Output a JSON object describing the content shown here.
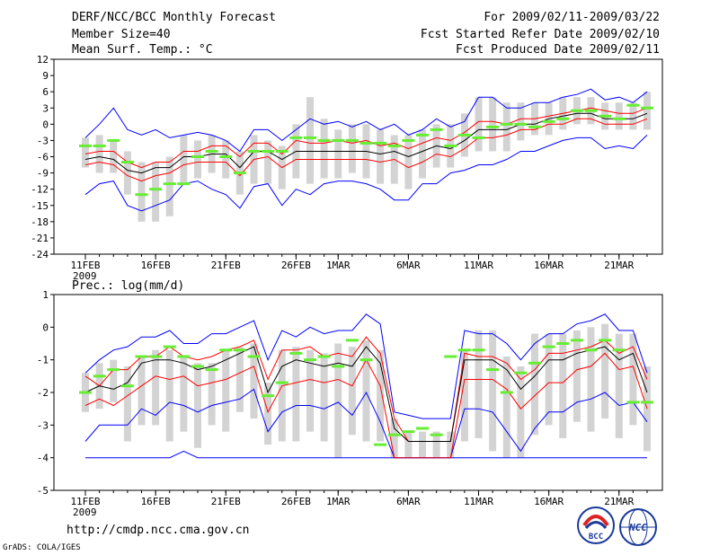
{
  "header": {
    "left": [
      "DERF/NCC/BCC Monthly Forecast",
      "Member Size=40",
      "Mean Surf. Temp.: °C"
    ],
    "right": [
      "For 2009/02/11-2009/03/22",
      "Fcst Started Refer Date 2009/02/10",
      "Fcst Produced Date 2009/02/11"
    ]
  },
  "footer": {
    "url": "http://cmdp.ncc.cma.gov.cn",
    "credit": "GrADS: COLA/IGES",
    "logo_bcc": "BCC",
    "logo_ncc": "NCC"
  },
  "colors": {
    "envelope": "#0000ff",
    "quartile": "#ff0000",
    "median": "#000000",
    "marker": "#66ee33",
    "bar": "#d3d3d3"
  },
  "chart_data": [
    {
      "type": "line",
      "title": "Mean Surf. Temp.: °C",
      "ylim": [
        -24,
        12
      ],
      "yticks": [
        -24,
        -21,
        -18,
        -15,
        -12,
        -9,
        -6,
        -3,
        0,
        3,
        6,
        9,
        12
      ],
      "x_ticks": [
        {
          "day": 0,
          "label": "11FEB",
          "sub": "2009"
        },
        {
          "day": 5,
          "label": "16FEB"
        },
        {
          "day": 10,
          "label": "21FEB"
        },
        {
          "day": 15,
          "label": "26FEB"
        },
        {
          "day": 18,
          "label": "1MAR"
        },
        {
          "day": 23,
          "label": "6MAR"
        },
        {
          "day": 28,
          "label": "11MAR"
        },
        {
          "day": 33,
          "label": "16MAR"
        },
        {
          "day": 38,
          "label": "21MAR"
        }
      ],
      "days": 40,
      "series": {
        "max": [
          -2.5,
          0,
          3,
          -1,
          -2,
          -1,
          -2.5,
          -2,
          -1.5,
          -2,
          -3,
          -5,
          -1,
          -1,
          -3,
          -1,
          1,
          0,
          0.5,
          -0.5,
          0.5,
          -1,
          0,
          -2,
          -1,
          1,
          -0.5,
          0.5,
          5,
          5,
          3,
          3,
          4,
          4,
          5,
          5.5,
          6.5,
          4.5,
          5,
          4,
          6
        ],
        "q75": [
          -5.5,
          -5,
          -5,
          -7,
          -8,
          -7,
          -7,
          -5,
          -5,
          -4,
          -4,
          -6,
          -3.5,
          -3.5,
          -5.5,
          -3,
          -3.5,
          -3.5,
          -3,
          -3.5,
          -3,
          -4,
          -3.5,
          -4.5,
          -3.5,
          -2.5,
          -3,
          -1.5,
          0.5,
          0.5,
          0,
          1,
          1,
          1.5,
          2,
          2.5,
          3,
          2.5,
          2,
          2,
          3
        ],
        "median": [
          -6.5,
          -6,
          -6.5,
          -8.5,
          -9,
          -8,
          -8,
          -6,
          -6,
          -5.5,
          -5.5,
          -8,
          -5,
          -5,
          -6.5,
          -5,
          -5,
          -5,
          -5,
          -5,
          -5,
          -5.5,
          -5,
          -6,
          -5,
          -4,
          -4.5,
          -3,
          -1,
          -1,
          -1,
          0,
          0,
          1,
          1.5,
          2,
          2,
          1,
          1,
          1,
          2
        ],
        "q25": [
          -7.5,
          -7,
          -7.5,
          -9.5,
          -10.5,
          -9.5,
          -9,
          -7.5,
          -7,
          -7,
          -7,
          -9.5,
          -6.5,
          -6,
          -8,
          -6.5,
          -6.5,
          -6.5,
          -6.5,
          -6.5,
          -6.5,
          -7,
          -6.5,
          -8,
          -7,
          -5.5,
          -6,
          -4.5,
          -2.5,
          -2.5,
          -2,
          -1,
          -1,
          0,
          0,
          1,
          1,
          0,
          0,
          0,
          1
        ],
        "min": [
          -13,
          -11,
          -10.5,
          -15,
          -16,
          -15,
          -14,
          -11,
          -10.5,
          -12,
          -13,
          -15.5,
          -11.5,
          -11,
          -15,
          -12,
          -13,
          -11,
          -10.5,
          -10.5,
          -11,
          -12,
          -14,
          -14,
          -11,
          -11,
          -9,
          -8.5,
          -7.5,
          -7.5,
          -6.5,
          -5,
          -5,
          -4,
          -3,
          -2.5,
          -2.5,
          -4.5,
          -4,
          -4.5,
          -2
        ],
        "obs": [
          -4,
          -4,
          -3,
          -7,
          -13,
          -12,
          -11,
          -11,
          -6,
          -5,
          -6,
          -9,
          -5,
          -5,
          -5,
          -2.5,
          -2.5,
          -3,
          -3,
          -3,
          -3.5,
          -3.5,
          -4,
          -3,
          -2,
          -1,
          -4,
          -2,
          -2.5,
          -0.5,
          0,
          0,
          -0.5,
          0.5,
          1,
          2.5,
          2.5,
          1.5,
          1,
          3.5,
          3
        ]
      },
      "bars": [
        [
          -8,
          -2.5
        ],
        [
          -9,
          -2
        ],
        [
          -9,
          -3
        ],
        [
          -13,
          -5
        ],
        [
          -18,
          -7
        ],
        [
          -18,
          -7
        ],
        [
          -17,
          -6
        ],
        [
          -11,
          -2
        ],
        [
          -10,
          -3
        ],
        [
          -9,
          -2
        ],
        [
          -10,
          -3
        ],
        [
          -13,
          -5
        ],
        [
          -11,
          -2
        ],
        [
          -11,
          -3
        ],
        [
          -12,
          -4
        ],
        [
          -10,
          0
        ],
        [
          -11,
          5
        ],
        [
          -10,
          1
        ],
        [
          -10,
          -1
        ],
        [
          -9,
          0
        ],
        [
          -10,
          0
        ],
        [
          -11,
          -1
        ],
        [
          -11,
          -2
        ],
        [
          -12,
          -2
        ],
        [
          -10,
          -1
        ],
        [
          -8,
          0
        ],
        [
          -8,
          0
        ],
        [
          -6,
          2
        ],
        [
          -5,
          5
        ],
        [
          -5,
          5
        ],
        [
          -5,
          4
        ],
        [
          -3,
          4
        ],
        [
          -2,
          4
        ],
        [
          -2,
          4
        ],
        [
          -1,
          5
        ],
        [
          0,
          5
        ],
        [
          0,
          5
        ],
        [
          -1,
          4
        ],
        [
          -1,
          4
        ],
        [
          -1,
          4
        ],
        [
          -1,
          6
        ]
      ]
    },
    {
      "type": "line",
      "title": "Prec.: log(mm/d)",
      "ylim": [
        -5,
        1
      ],
      "yticks": [
        -5,
        -4,
        -3,
        -2,
        -1,
        0,
        1
      ],
      "x_ticks": [
        {
          "day": 0,
          "label": "11FEB",
          "sub": "2009"
        },
        {
          "day": 5,
          "label": "16FEB"
        },
        {
          "day": 10,
          "label": "21FEB"
        },
        {
          "day": 15,
          "label": "26FEB"
        },
        {
          "day": 18,
          "label": "1MAR"
        },
        {
          "day": 23,
          "label": "6MAR"
        },
        {
          "day": 28,
          "label": "11MAR"
        },
        {
          "day": 33,
          "label": "16MAR"
        },
        {
          "day": 38,
          "label": "21MAR"
        }
      ],
      "days": 40,
      "series": {
        "max": [
          -1.4,
          -1,
          -0.7,
          -0.6,
          -0.3,
          -0.3,
          -0.1,
          -0.5,
          -0.5,
          -0.2,
          -0.2,
          0,
          0.2,
          -1,
          -0.1,
          -0.3,
          0,
          -0.2,
          -0.1,
          -0.1,
          0.4,
          0.1,
          -2.6,
          -2.7,
          -2.8,
          -2.8,
          -2.8,
          -0.1,
          -0.2,
          -0.2,
          -0.5,
          -1,
          -0.5,
          -0.2,
          -0.2,
          0.1,
          0.2,
          0.4,
          -0.1,
          -0.1,
          -1.4
        ],
        "q75": [
          -1.5,
          -1.8,
          -1.3,
          -1.3,
          -0.9,
          -0.9,
          -0.6,
          -0.9,
          -1,
          -0.9,
          -0.7,
          -0.6,
          -0.4,
          -1.6,
          -0.7,
          -0.7,
          -0.6,
          -0.9,
          -0.8,
          -0.9,
          -0.3,
          -0.8,
          -2.8,
          -3.5,
          -3.5,
          -3.5,
          -3.5,
          -0.8,
          -0.9,
          -0.9,
          -1.1,
          -1.6,
          -1.3,
          -0.8,
          -0.8,
          -0.7,
          -0.6,
          -0.4,
          -0.8,
          -0.6,
          -1.6
        ],
        "median": [
          -2,
          -1.8,
          -1.9,
          -1.7,
          -1.1,
          -1,
          -1,
          -1.1,
          -1.3,
          -1.2,
          -1,
          -0.8,
          -0.6,
          -2,
          -1.2,
          -1,
          -1.1,
          -1.2,
          -1.1,
          -1.2,
          -0.6,
          -1.1,
          -3.1,
          -3.5,
          -3.5,
          -3.5,
          -3.5,
          -1,
          -1,
          -1,
          -1.3,
          -1.9,
          -1.5,
          -1,
          -1,
          -0.8,
          -0.7,
          -0.6,
          -1,
          -0.8,
          -2
        ],
        "q25": [
          -2.4,
          -2.2,
          -2.4,
          -2.1,
          -1.8,
          -1.5,
          -1.6,
          -1.5,
          -1.8,
          -1.7,
          -1.6,
          -1.4,
          -1.2,
          -2.6,
          -1.8,
          -1.7,
          -1.6,
          -1.7,
          -1.6,
          -1.8,
          -1,
          -1.8,
          -4,
          -4,
          -4,
          -4,
          -4,
          -1.6,
          -1.6,
          -1.6,
          -1.9,
          -2.5,
          -2.1,
          -1.7,
          -1.7,
          -1.3,
          -1.2,
          -0.8,
          -1.3,
          -1.2,
          -2.5
        ],
        "min": [
          -3.5,
          -3,
          -3,
          -3,
          -2.5,
          -2.7,
          -2.3,
          -2.4,
          -2.6,
          -2.4,
          -2.3,
          -2.2,
          -1.9,
          -3.2,
          -2.6,
          -2.4,
          -2.4,
          -2.5,
          -2.3,
          -2.7,
          -2,
          -2.9,
          -4,
          -4,
          -4,
          -4,
          -4,
          -2.5,
          -2.5,
          -2.6,
          -3.2,
          -3.8,
          -3.1,
          -2.6,
          -2.6,
          -2.3,
          -2.2,
          -2,
          -2.4,
          -2.3,
          -2.9
        ],
        "low": [
          -4,
          -4,
          -4,
          -4,
          -4,
          -4,
          -4,
          -3.8,
          -4,
          -4,
          -4,
          -4,
          -4,
          -4,
          -4,
          -4,
          -4,
          -4,
          -4,
          -4,
          -4,
          -4,
          -4,
          -4,
          -4,
          -4,
          -4,
          -4,
          -4,
          -4,
          -4,
          -4,
          -4,
          -4,
          -4,
          -4,
          -4,
          -4,
          -4,
          -4,
          -4
        ],
        "obs": [
          -2,
          -1.5,
          -1.3,
          -1.8,
          -0.9,
          -0.9,
          -0.6,
          -0.9,
          -1.2,
          -1.3,
          -0.7,
          -0.7,
          -0.9,
          -2.1,
          -1.7,
          -0.8,
          -1,
          -0.9,
          -1.2,
          -0.4,
          -1,
          -3.6,
          -3.3,
          -3.2,
          -3.1,
          -3.3,
          -0.9,
          -0.7,
          -0.7,
          -1.3,
          -2,
          -1.4,
          -1.1,
          -0.6,
          -0.5,
          -0.4,
          -0.7,
          -0.4,
          -0.7,
          -2.3,
          -2.3
        ]
      },
      "bars": [
        [
          -2.6,
          -1.4
        ],
        [
          -2.5,
          -1.1
        ],
        [
          -2.3,
          -1
        ],
        [
          -3.5,
          -1.2
        ],
        [
          -3,
          -0.9
        ],
        [
          -3,
          -0.7
        ],
        [
          -3.5,
          -0.7
        ],
        [
          -3.2,
          -0.9
        ],
        [
          -3.7,
          -1.1
        ],
        [
          -3,
          -1.1
        ],
        [
          -3.2,
          -0.7
        ],
        [
          -2.6,
          -0.6
        ],
        [
          -2.8,
          -0.5
        ],
        [
          -3.6,
          -1.7
        ],
        [
          -3.5,
          -0.7
        ],
        [
          -3.5,
          -0.6
        ],
        [
          -3.2,
          -0.7
        ],
        [
          -3.5,
          -0.8
        ],
        [
          -4,
          -0.5
        ],
        [
          -3.3,
          -0.6
        ],
        [
          -3.5,
          -0.4
        ],
        [
          -3.5,
          -0.7
        ],
        [
          -4,
          -2.8
        ],
        [
          -4,
          -3.2
        ],
        [
          -4,
          -3.2
        ],
        [
          -4,
          -3.2
        ],
        [
          -4,
          -3.2
        ],
        [
          -3.5,
          -0.7
        ],
        [
          -3.4,
          -0.1
        ],
        [
          -3.8,
          -0.1
        ],
        [
          -4,
          -0.9
        ],
        [
          -4,
          -1.2
        ],
        [
          -3.3,
          -0.2
        ],
        [
          -3,
          -0.2
        ],
        [
          -3.4,
          -0.2
        ],
        [
          -2.9,
          -0.1
        ],
        [
          -3.2,
          0
        ],
        [
          -2.8,
          0.1
        ],
        [
          -3.4,
          -0.2
        ],
        [
          -3,
          -0.2
        ],
        [
          -3.8,
          -1.2
        ]
      ]
    }
  ]
}
